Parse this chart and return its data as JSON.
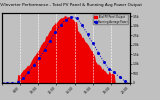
{
  "title": "Solar PV/Inverter Performance - Total PV Panel & Running Avg Power Output",
  "bg_color": "#c0c0c0",
  "plot_bg_color": "#c0c0c0",
  "grid_color": "#ffffff",
  "fill_color": "#ee0000",
  "avg_color": "#0000cc",
  "num_points": 144,
  "peak_value": 3500,
  "title_color": "#000000",
  "tick_color": "#000000",
  "title_fontsize": 3.0,
  "tick_fontsize": 2.2,
  "legend_pv": "Total PV Panel Output",
  "legend_avg": "Running Average Power",
  "ytick_labels": [
    "3.5k",
    "3.0k",
    "2.5k",
    "2.0k",
    "1.5k",
    "1.0k",
    "500",
    "0"
  ],
  "ytick_vals": [
    1.0,
    0.857,
    0.714,
    0.571,
    0.429,
    0.286,
    0.143,
    0.0
  ],
  "xtick_labels": [
    "6:00",
    "8:00",
    "10:00",
    "12:00",
    "14:00",
    "16:00",
    "18:00",
    "20:00"
  ],
  "sunrise_idx": 18,
  "sunset_idx": 126,
  "peak_idx": 72
}
